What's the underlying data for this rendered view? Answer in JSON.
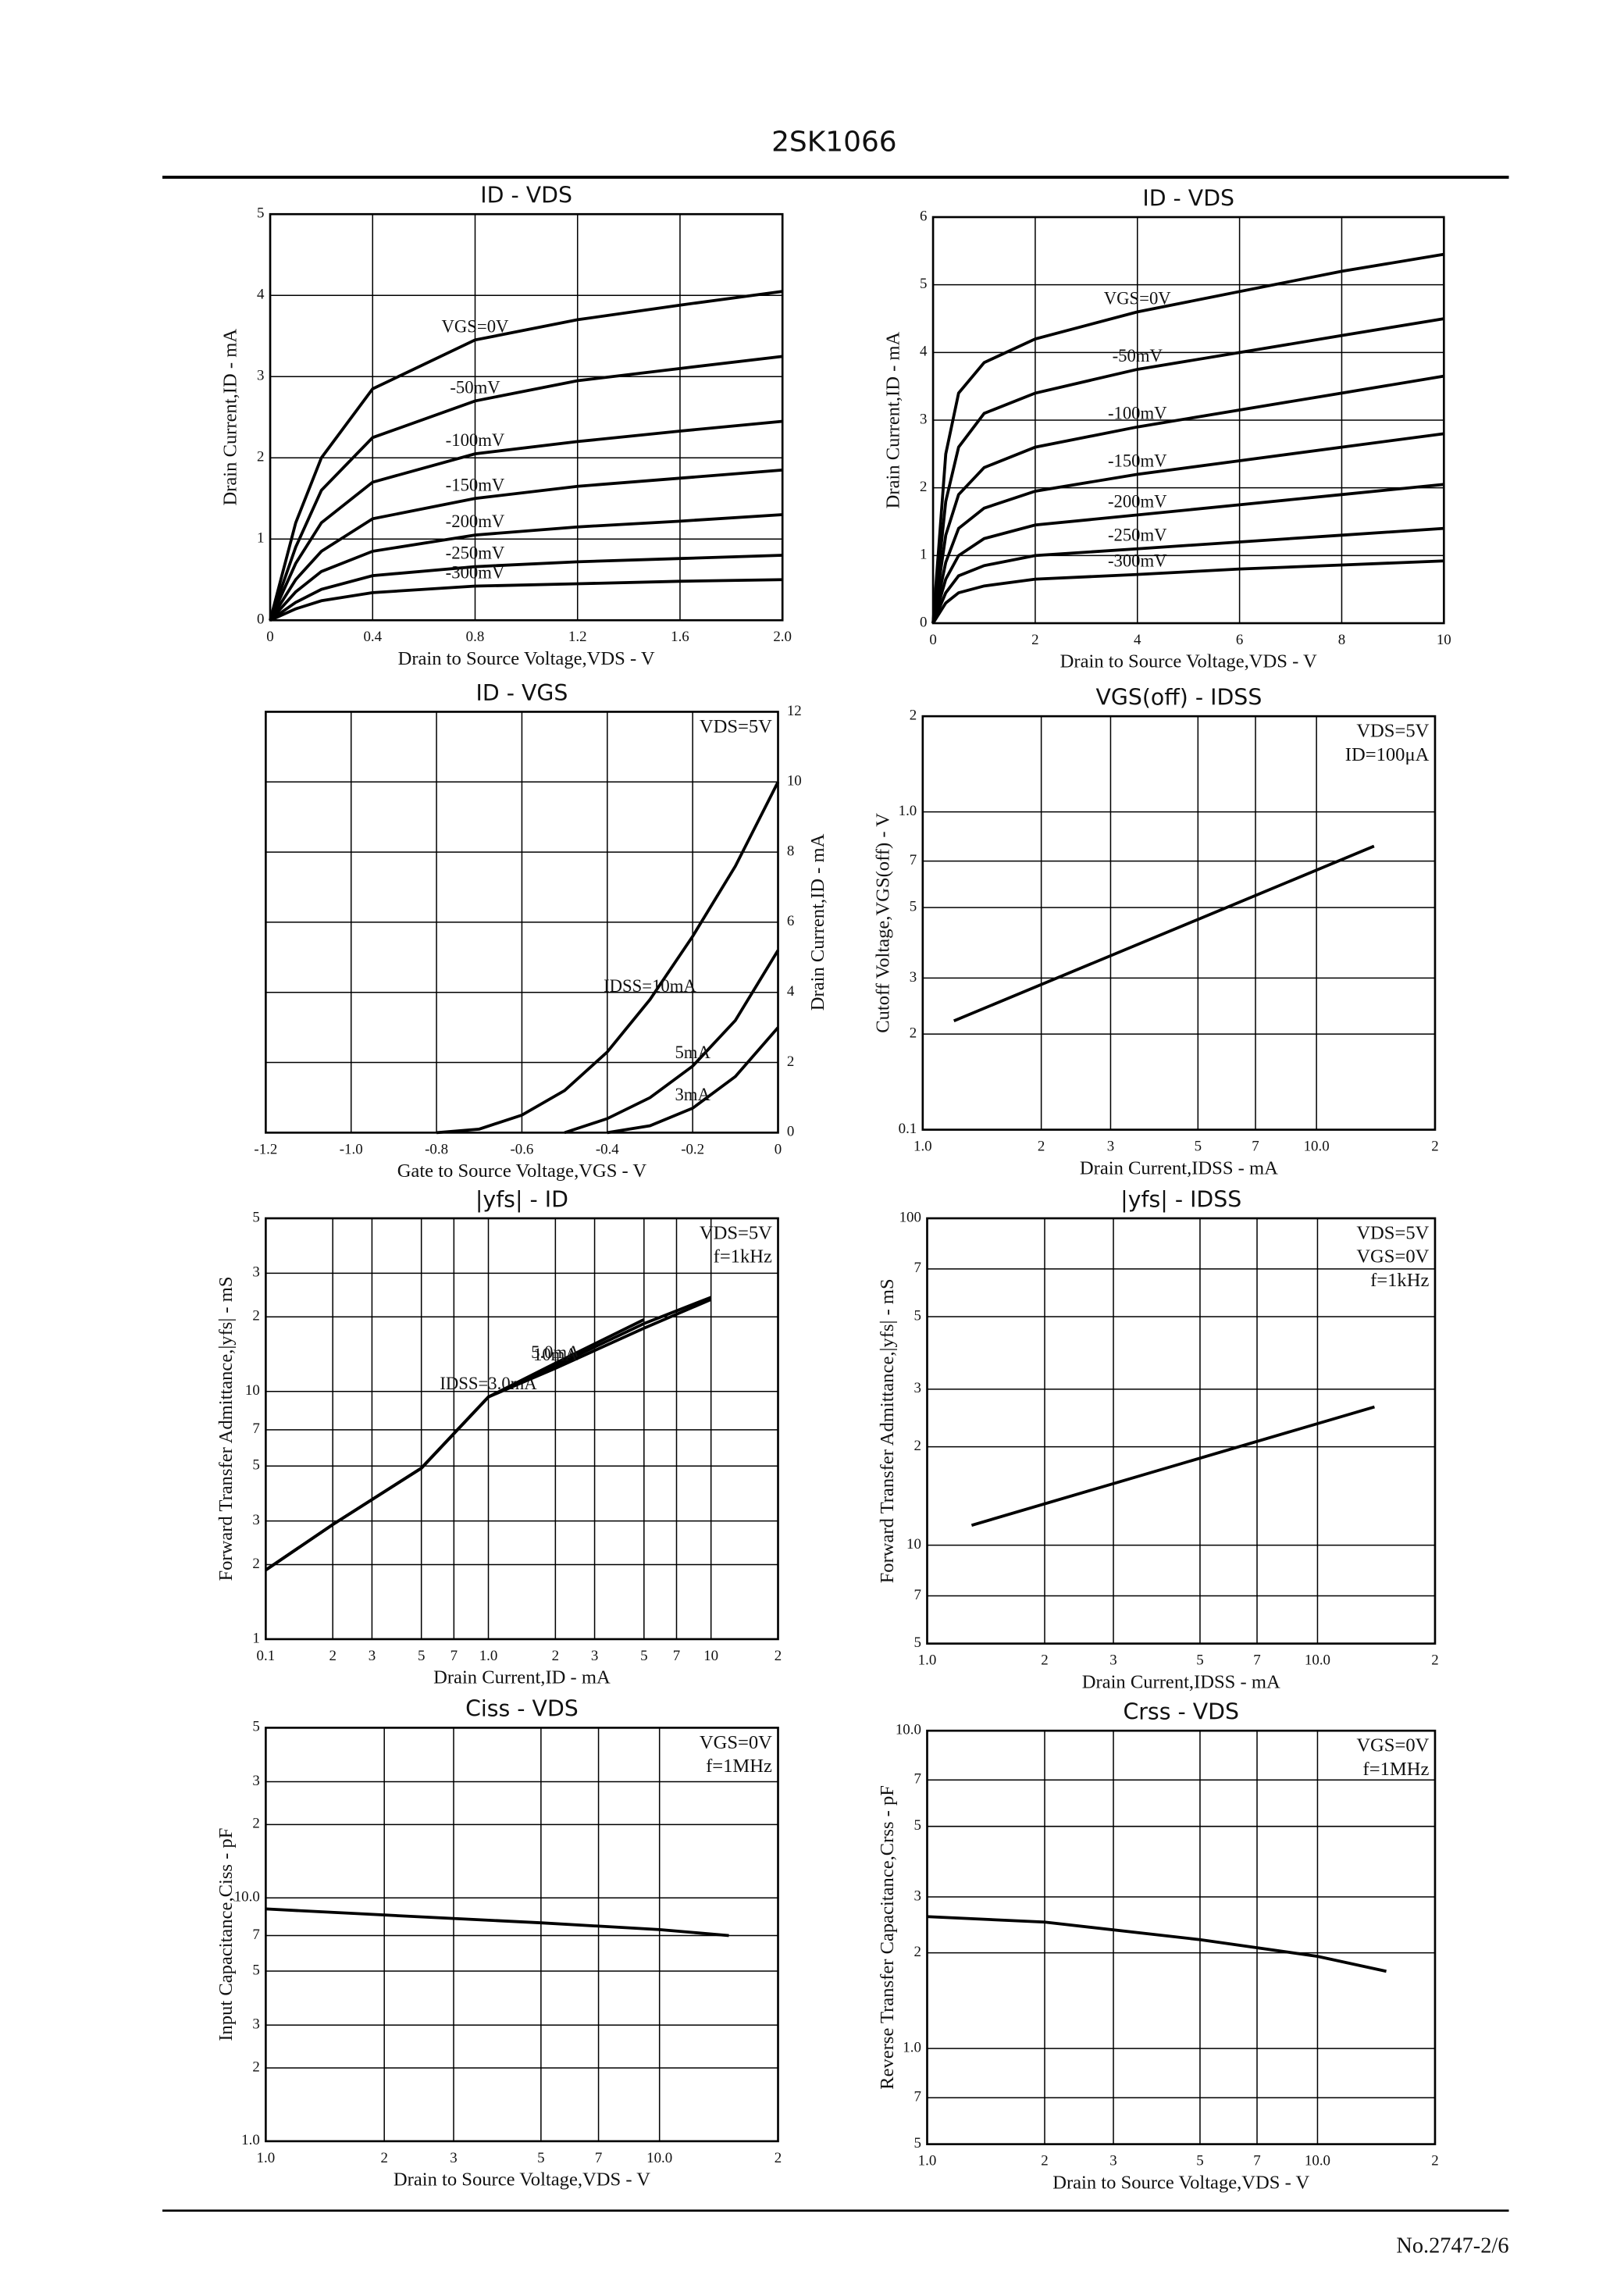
{
  "header": {
    "title": "2SK1066"
  },
  "footer": {
    "doc_no": "No.2747-2/6"
  },
  "chart_data": [
    {
      "type": "line",
      "title": "ID - VDS",
      "xlabel": "Drain to Source Voltage,VDS - V",
      "ylabel": "Drain Current,ID - mA",
      "xlim": [
        0,
        2
      ],
      "ylim": [
        0,
        5
      ],
      "xticks": [
        0,
        0.4,
        0.8,
        1.2,
        1.6,
        {
          "value": 2,
          "label": "2.0"
        }
      ],
      "yticks": [
        0,
        1,
        2,
        3,
        4,
        5
      ],
      "grid": true,
      "x": [
        0,
        0.1,
        0.2,
        0.4,
        0.8,
        1.2,
        1.6,
        2.0
      ],
      "series": [
        {
          "name": "VGS=0V",
          "color": "#000",
          "values": [
            0,
            1.2,
            2.0,
            2.85,
            3.45,
            3.7,
            3.88,
            4.05
          ]
        },
        {
          "name": "-50mV",
          "color": "#000",
          "values": [
            0,
            0.9,
            1.6,
            2.25,
            2.7,
            2.95,
            3.1,
            3.25
          ]
        },
        {
          "name": "-100mV",
          "color": "#000",
          "values": [
            0,
            0.7,
            1.2,
            1.7,
            2.05,
            2.2,
            2.33,
            2.45
          ]
        },
        {
          "name": "-150mV",
          "color": "#000",
          "values": [
            0,
            0.5,
            0.85,
            1.25,
            1.5,
            1.65,
            1.75,
            1.85
          ]
        },
        {
          "name": "-200mV",
          "color": "#000",
          "values": [
            0,
            0.35,
            0.6,
            0.85,
            1.05,
            1.15,
            1.22,
            1.3
          ]
        },
        {
          "name": "-250mV",
          "color": "#000",
          "values": [
            0,
            0.22,
            0.38,
            0.55,
            0.66,
            0.72,
            0.76,
            0.8
          ]
        },
        {
          "name": "-300mV",
          "color": "#000",
          "values": [
            0,
            0.14,
            0.24,
            0.34,
            0.42,
            0.45,
            0.48,
            0.5
          ]
        }
      ]
    },
    {
      "type": "line",
      "title": "ID - VDS",
      "xlabel": "Drain to Source Voltage,VDS - V",
      "ylabel": "Drain Current,ID - mA",
      "xlim": [
        0,
        10
      ],
      "ylim": [
        0,
        6
      ],
      "xticks": [
        0,
        2,
        4,
        6,
        8,
        10
      ],
      "yticks": [
        0,
        1,
        2,
        3,
        4,
        5,
        6
      ],
      "grid": true,
      "x": [
        0,
        0.25,
        0.5,
        1,
        2,
        4,
        6,
        8,
        10
      ],
      "series": [
        {
          "name": "VGS=0V",
          "color": "#000",
          "values": [
            0,
            2.5,
            3.4,
            3.85,
            4.2,
            4.6,
            4.9,
            5.2,
            5.45
          ]
        },
        {
          "name": "-50mV",
          "color": "#000",
          "values": [
            0,
            1.8,
            2.6,
            3.1,
            3.4,
            3.75,
            4.0,
            4.25,
            4.5
          ]
        },
        {
          "name": "-100mV",
          "color": "#000",
          "values": [
            0,
            1.3,
            1.9,
            2.3,
            2.6,
            2.9,
            3.15,
            3.4,
            3.65
          ]
        },
        {
          "name": "-150mV",
          "color": "#000",
          "values": [
            0,
            0.9,
            1.4,
            1.7,
            1.95,
            2.2,
            2.4,
            2.6,
            2.8
          ]
        },
        {
          "name": "-200mV",
          "color": "#000",
          "values": [
            0,
            0.65,
            1.0,
            1.25,
            1.45,
            1.6,
            1.75,
            1.9,
            2.05
          ]
        },
        {
          "name": "-250mV",
          "color": "#000",
          "values": [
            0,
            0.45,
            0.7,
            0.85,
            1.0,
            1.1,
            1.2,
            1.3,
            1.4
          ]
        },
        {
          "name": "-300mV",
          "color": "#000",
          "values": [
            0,
            0.3,
            0.45,
            0.55,
            0.65,
            0.72,
            0.8,
            0.86,
            0.92
          ]
        }
      ]
    },
    {
      "type": "line",
      "title": "ID - VGS",
      "xlabel": "Gate to Source Voltage,VGS - V",
      "ylabel": "Drain Current,ID - mA",
      "y_axis_position": "right",
      "xlim": [
        -1.2,
        0
      ],
      "ylim": [
        0,
        12
      ],
      "xticks": [
        -1.2,
        {
          "value": -1,
          "label": "-1.0"
        },
        -0.8,
        -0.6,
        -0.4,
        -0.2,
        0
      ],
      "yticks": [
        0,
        2,
        4,
        6,
        8,
        10,
        12
      ],
      "grid": true,
      "annotations": [
        "VDS=5V"
      ],
      "x": [
        -0.8,
        -0.7,
        -0.6,
        -0.5,
        -0.4,
        -0.3,
        -0.2,
        -0.1,
        0
      ],
      "series": [
        {
          "name": "IDSS=10mA",
          "color": "#000",
          "values": [
            0,
            0.1,
            0.5,
            1.2,
            2.3,
            3.8,
            5.6,
            7.6,
            10
          ]
        },
        {
          "name": "5mA",
          "color": "#000",
          "values": [
            null,
            null,
            null,
            0,
            0.4,
            1.0,
            1.9,
            3.2,
            5.2
          ]
        },
        {
          "name": "3mA",
          "color": "#000",
          "values": [
            null,
            null,
            null,
            null,
            0,
            0.2,
            0.7,
            1.6,
            3.0
          ]
        }
      ]
    },
    {
      "type": "line",
      "title": "VGS(off) - IDSS",
      "xlabel": "Drain Current,IDSS - mA",
      "ylabel": "Cutoff Voltage,VGS(off) - V",
      "xlog": true,
      "ylog": true,
      "xlim": [
        1,
        20
      ],
      "ylim": [
        0.1,
        2
      ],
      "xticks": [
        {
          "value": 1,
          "label": "1.0"
        },
        2,
        3,
        5,
        7,
        {
          "value": 10,
          "label": "10.0"
        },
        {
          "value": 20,
          "label": "2"
        }
      ],
      "yticks": [
        0.1,
        {
          "value": 0.2,
          "label": "2"
        },
        {
          "value": 0.3,
          "label": "3"
        },
        {
          "value": 0.5,
          "label": "5"
        },
        {
          "value": 0.7,
          "label": "7"
        },
        {
          "value": 1,
          "label": "1.0"
        },
        2
      ],
      "grid": true,
      "annotations": [
        "VDS=5V",
        "ID=100μA"
      ],
      "x": [
        1.2,
        5,
        14
      ],
      "series": [
        {
          "color": "#000",
          "values": [
            0.22,
            0.459,
            0.78
          ]
        }
      ]
    },
    {
      "type": "line",
      "title": "|yfs| - ID",
      "xlabel": "Drain Current,ID - mA",
      "ylabel": "Forward Transfer Admittance,|yfs| - mS",
      "xlog": true,
      "ylog": true,
      "xlim": [
        0.1,
        20
      ],
      "ylim": [
        1,
        50
      ],
      "xticks": [
        0.1,
        {
          "value": 0.2,
          "label": "2"
        },
        {
          "value": 0.3,
          "label": "3"
        },
        {
          "value": 0.5,
          "label": "5"
        },
        {
          "value": 0.7,
          "label": "7"
        },
        {
          "value": 1,
          "label": "1.0"
        },
        2,
        3,
        5,
        7,
        10,
        {
          "value": 20,
          "label": "2"
        }
      ],
      "yticks": [
        1,
        2,
        3,
        5,
        7,
        10,
        {
          "value": 20,
          "label": "2"
        },
        {
          "value": 30,
          "label": "3"
        },
        {
          "value": 50,
          "label": "5"
        }
      ],
      "grid": true,
      "annotations": [
        "VDS=5V",
        "f=1kHz"
      ],
      "x": [
        0.1,
        0.2,
        0.5,
        1,
        2,
        5,
        10
      ],
      "series": [
        {
          "name": "IDSS=3.0mA",
          "color": "#000",
          "values": [
            1.9,
            2.9,
            4.9,
            9.5,
            13,
            19.5,
            null
          ]
        },
        {
          "name": "5.0mA",
          "color": "#000",
          "values": [
            1.9,
            2.9,
            4.9,
            9.5,
            12.7,
            18.8,
            24
          ]
        },
        {
          "name": "10mA",
          "color": "#000",
          "values": [
            1.9,
            2.9,
            4.9,
            9.5,
            12.4,
            18,
            23.5
          ]
        }
      ]
    },
    {
      "type": "line",
      "title": "|yfs| - IDSS",
      "xlabel": "Drain Current,IDSS - mA",
      "ylabel": "Forward Transfer Admittance,|yfs| - mS",
      "xlog": true,
      "ylog": true,
      "xlim": [
        1,
        20
      ],
      "ylim": [
        5,
        100
      ],
      "xticks": [
        {
          "value": 1,
          "label": "1.0"
        },
        2,
        3,
        5,
        7,
        {
          "value": 10,
          "label": "10.0"
        },
        {
          "value": 20,
          "label": "2"
        }
      ],
      "yticks": [
        5,
        7,
        10,
        {
          "value": 20,
          "label": "2"
        },
        {
          "value": 30,
          "label": "3"
        },
        {
          "value": 50,
          "label": "5"
        },
        {
          "value": 70,
          "label": "7"
        },
        100
      ],
      "grid": true,
      "annotations": [
        "VDS=5V",
        "VGS=0V",
        "f=1kHz"
      ],
      "x": [
        1.3,
        14
      ],
      "series": [
        {
          "color": "#000",
          "values": [
            11.5,
            26.5
          ]
        }
      ]
    },
    {
      "type": "line",
      "title": "Ciss - VDS",
      "xlabel": "Drain to Source Voltage,VDS - V",
      "ylabel": "Input Capacitance,Ciss - pF",
      "xlog": true,
      "ylog": true,
      "xlim": [
        1,
        20
      ],
      "ylim": [
        1,
        50
      ],
      "xticks": [
        {
          "value": 1,
          "label": "1.0"
        },
        2,
        3,
        5,
        7,
        {
          "value": 10,
          "label": "10.0"
        },
        {
          "value": 20,
          "label": "2"
        }
      ],
      "yticks": [
        {
          "value": 1,
          "label": "1.0"
        },
        2,
        3,
        5,
        7,
        {
          "value": 10,
          "label": "10.0"
        },
        {
          "value": 20,
          "label": "2"
        },
        {
          "value": 30,
          "label": "3"
        },
        {
          "value": 50,
          "label": "5"
        }
      ],
      "grid": true,
      "annotations": [
        "VGS=0V",
        "f=1MHz"
      ],
      "x": [
        1,
        2,
        5,
        10,
        15
      ],
      "series": [
        {
          "color": "#000",
          "values": [
            9.0,
            8.5,
            7.9,
            7.4,
            7.0
          ]
        }
      ]
    },
    {
      "type": "line",
      "title": "Crss - VDS",
      "xlabel": "Drain to Source Voltage,VDS - V",
      "ylabel": "Reverse Transfer Capacitance,Crss - pF",
      "xlog": true,
      "ylog": true,
      "xlim": [
        1,
        20
      ],
      "ylim": [
        0.5,
        10
      ],
      "xticks": [
        {
          "value": 1,
          "label": "1.0"
        },
        2,
        3,
        5,
        7,
        {
          "value": 10,
          "label": "10.0"
        },
        {
          "value": 20,
          "label": "2"
        }
      ],
      "yticks": [
        {
          "value": 0.5,
          "label": "5"
        },
        {
          "value": 0.7,
          "label": "7"
        },
        {
          "value": 1,
          "label": "1.0"
        },
        2,
        3,
        5,
        7,
        {
          "value": 10,
          "label": "10.0"
        }
      ],
      "grid": true,
      "annotations": [
        "VGS=0V",
        "f=1MHz"
      ],
      "x": [
        1,
        2,
        5,
        10,
        15
      ],
      "series": [
        {
          "color": "#000",
          "values": [
            2.6,
            2.5,
            2.2,
            1.95,
            1.75
          ]
        }
      ]
    }
  ]
}
